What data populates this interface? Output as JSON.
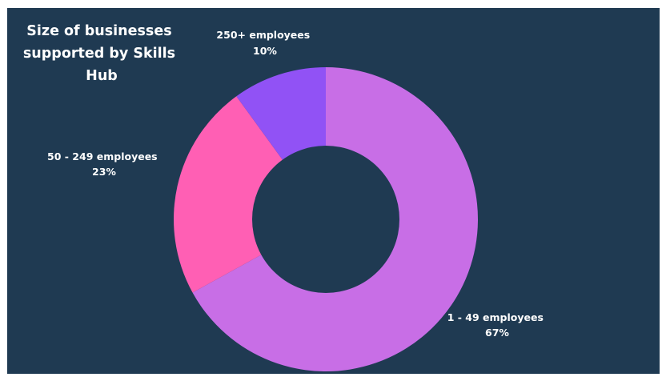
{
  "chart_data": {
    "type": "pie",
    "title": "Size of businesses supported by Skills Hub",
    "title_lines": [
      "Size of businesses",
      "supported by Skills",
      "Hub"
    ],
    "categories": [
      "1 - 49 employees",
      "50 - 249 employees",
      "250+ employees"
    ],
    "values": [
      67,
      23,
      10
    ],
    "value_labels": [
      "67%",
      "23%",
      "10%"
    ],
    "colors": [
      "#c86ee6",
      "#ff5fb4",
      "#9152f5"
    ],
    "donut": true,
    "background": "#1f3a52",
    "hole_color": "#1f3a52",
    "label_color": "#ffffff"
  }
}
